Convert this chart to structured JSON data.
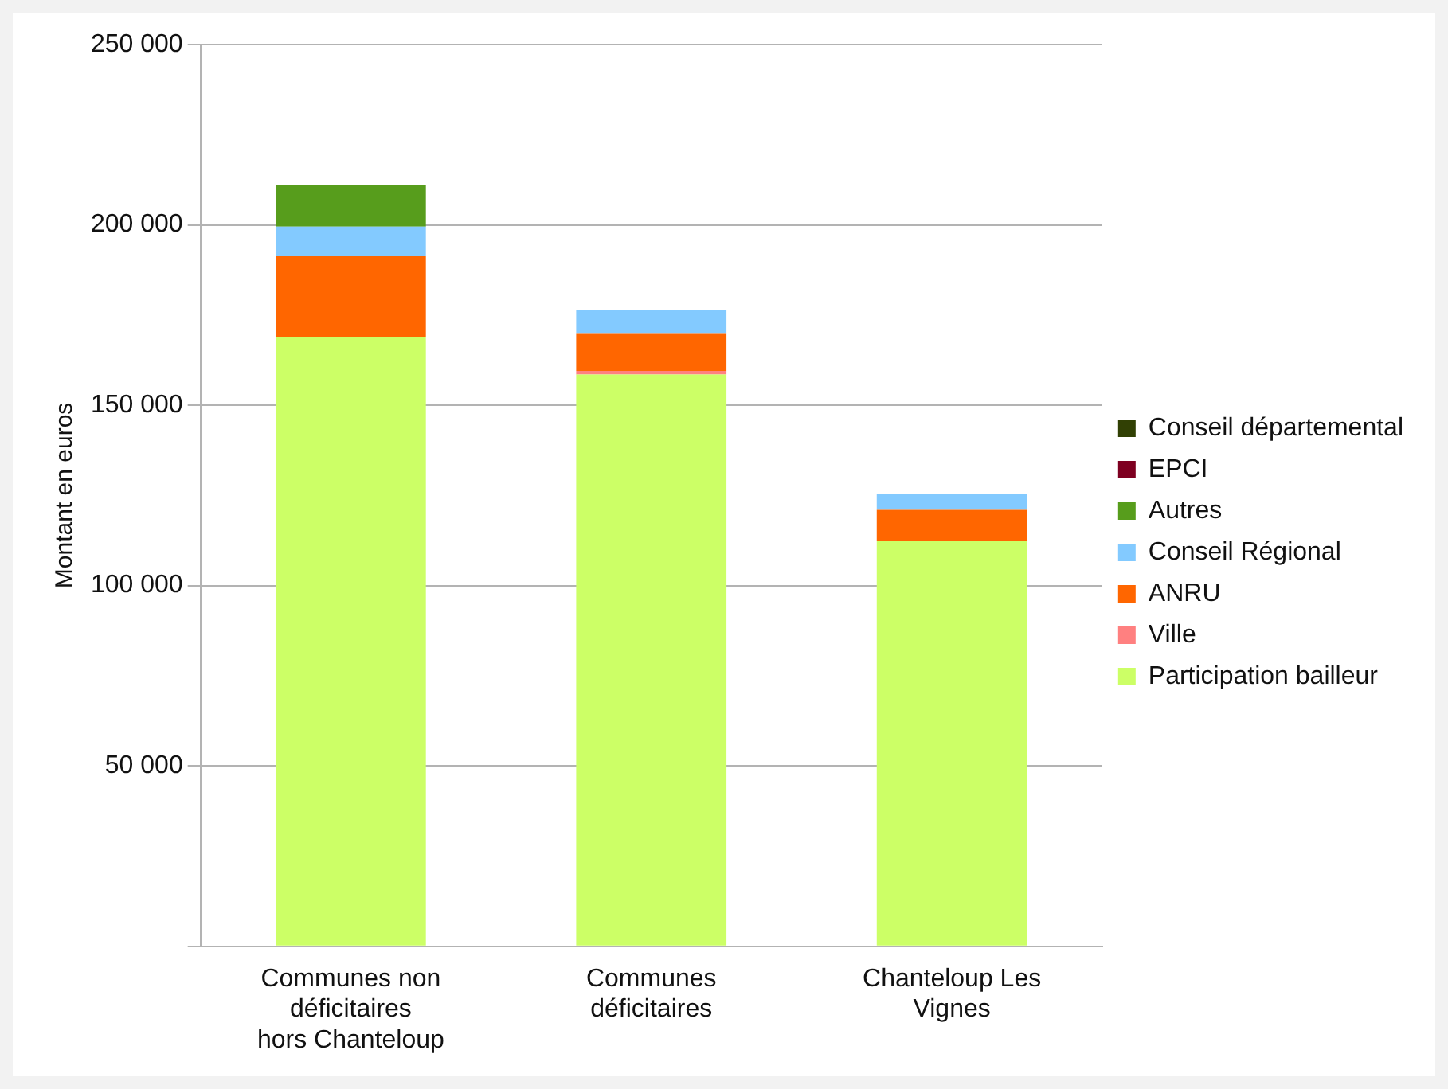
{
  "chart_data": {
    "type": "bar",
    "stacked": true,
    "ylabel": "Montant en euros",
    "categories": [
      "Communes non déficitaires hors Chanteloup",
      "Communes déficitaires",
      "Chanteloup Les Vignes"
    ],
    "series": [
      {
        "name": "Participation bailleur",
        "color": "#ccff66",
        "values": [
          169000,
          158500,
          112500
        ]
      },
      {
        "name": "Ville",
        "color": "#ff8080",
        "values": [
          0,
          1000,
          0
        ]
      },
      {
        "name": "ANRU",
        "color": "#ff6600",
        "values": [
          22500,
          10500,
          8500
        ]
      },
      {
        "name": "Conseil Régional",
        "color": "#83caff",
        "values": [
          8000,
          6500,
          4500
        ]
      },
      {
        "name": "Autres",
        "color": "#579d1c",
        "values": [
          11500,
          0,
          0
        ]
      },
      {
        "name": "EPCI",
        "color": "#7e0021",
        "values": [
          0,
          0,
          0
        ]
      },
      {
        "name": "Conseil départemental",
        "color": "#314004",
        "values": [
          0,
          0,
          0
        ]
      }
    ],
    "ylim": [
      0,
      250000
    ],
    "yticks": [
      {
        "value": 0,
        "label": null
      },
      {
        "value": 50000,
        "label": "50 000"
      },
      {
        "value": 100000,
        "label": "100 000"
      },
      {
        "value": 150000,
        "label": "150 000"
      },
      {
        "value": 200000,
        "label": "200 000"
      },
      {
        "value": 250000,
        "label": "250 000"
      }
    ],
    "grid": "y",
    "legend": "right"
  }
}
